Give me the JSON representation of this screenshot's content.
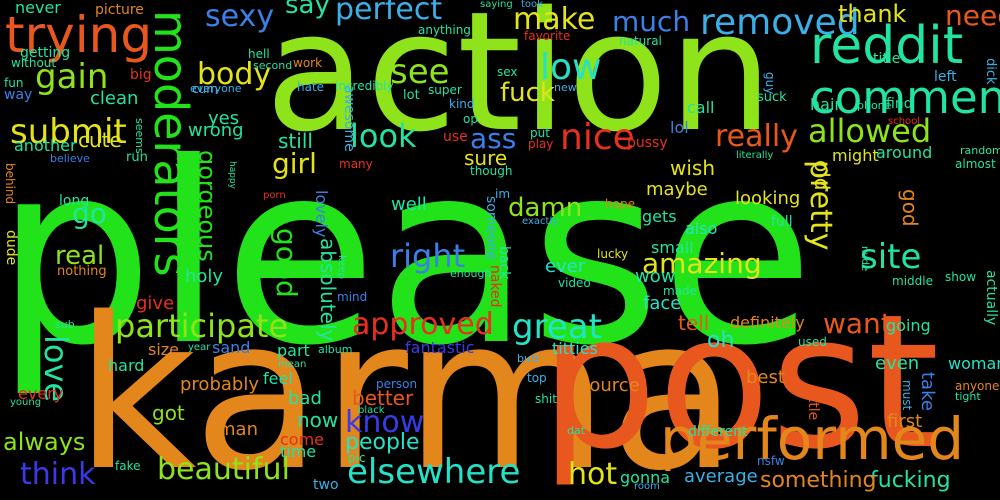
{
  "words": [
    {
      "text": "please",
      "color": "#22e31a"
    },
    {
      "text": "karma",
      "color": "#e3861c"
    },
    {
      "text": "post",
      "color": "#e8581e"
    },
    {
      "text": "action",
      "color": "#8fe31a"
    },
    {
      "text": "performed",
      "color": "#e3861c"
    },
    {
      "text": "moderators",
      "color": "#22e31a"
    },
    {
      "text": "reddit",
      "color": "#22e3a0"
    },
    {
      "text": "trying",
      "color": "#e8581e"
    },
    {
      "text": "comment",
      "color": "#22e3a0"
    },
    {
      "text": "allowed",
      "color": "#8fe31a"
    },
    {
      "text": "participate",
      "color": "#8fe31a"
    },
    {
      "text": "approved",
      "color": "#e8301e"
    },
    {
      "text": "elsewhere",
      "color": "#22e3c8"
    },
    {
      "text": "great",
      "color": "#22e3c8"
    },
    {
      "text": "beautiful",
      "color": "#8fe31a"
    },
    {
      "text": "nice",
      "color": "#e8301e"
    },
    {
      "text": "gain",
      "color": "#8fe31a"
    },
    {
      "text": "submit",
      "color": "#e3e31a"
    },
    {
      "text": "site",
      "color": "#22e3a0"
    },
    {
      "text": "removed",
      "color": "#3ab0e8"
    },
    {
      "text": "low",
      "color": "#22e3c8"
    },
    {
      "text": "see",
      "color": "#8fe31a"
    },
    {
      "text": "look",
      "color": "#22e3a0"
    },
    {
      "text": "really",
      "color": "#e8581e"
    },
    {
      "text": "gorgeous",
      "color": "#22e31a"
    },
    {
      "text": "sexy",
      "color": "#3a80e8"
    },
    {
      "text": "perfect",
      "color": "#3ab0e8"
    },
    {
      "text": "body",
      "color": "#e3e31a"
    },
    {
      "text": "make",
      "color": "#e3e31a"
    },
    {
      "text": "much",
      "color": "#3a80e8"
    },
    {
      "text": "need",
      "color": "#e8581e"
    },
    {
      "text": "thank",
      "color": "#e3e31a"
    },
    {
      "text": "say",
      "color": "#22e3a0"
    },
    {
      "text": "fuck",
      "color": "#e3e31a"
    },
    {
      "text": "ass",
      "color": "#3a80e8"
    },
    {
      "text": "pretty",
      "color": "#e3e31a"
    },
    {
      "text": "amazing",
      "color": "#e3e31a"
    },
    {
      "text": "good",
      "color": "#22e31a"
    },
    {
      "text": "girl",
      "color": "#e3e31a"
    },
    {
      "text": "damn",
      "color": "#8fe31a"
    },
    {
      "text": "right",
      "color": "#3a80e8"
    },
    {
      "text": "love",
      "color": "#22e3a0"
    },
    {
      "text": "think",
      "color": "#3a3ae8"
    },
    {
      "text": "know",
      "color": "#3a3ae8"
    },
    {
      "text": "hot",
      "color": "#e3e31a"
    },
    {
      "text": "want",
      "color": "#e8581e"
    },
    {
      "text": "real",
      "color": "#8fe31a"
    },
    {
      "text": "go",
      "color": "#22e3a0"
    },
    {
      "text": "cute",
      "color": "#e3e31a"
    },
    {
      "text": "sure",
      "color": "#e3e31a"
    },
    {
      "text": "wish",
      "color": "#e3e31a"
    },
    {
      "text": "looking",
      "color": "#e3e31a"
    },
    {
      "text": "still",
      "color": "#22e3a0"
    },
    {
      "text": "oh",
      "color": "#22e3c8"
    },
    {
      "text": "tell",
      "color": "#e8581e"
    },
    {
      "text": "people",
      "color": "#22e3c8"
    },
    {
      "text": "always",
      "color": "#8fe31a"
    },
    {
      "text": "got",
      "color": "#8fe31a"
    },
    {
      "text": "fucking",
      "color": "#22e3a0"
    },
    {
      "text": "something",
      "color": "#e3861c"
    },
    {
      "text": "woman",
      "color": "#22e3c8"
    },
    {
      "text": "yes",
      "color": "#22e3a0"
    },
    {
      "text": "wrong",
      "color": "#22e3a0"
    },
    {
      "text": "clean",
      "color": "#22e3a0"
    },
    {
      "text": "well",
      "color": "#22e3a0"
    },
    {
      "text": "absolutely",
      "color": "#22e3a0"
    },
    {
      "text": "lovely",
      "color": "#3a80e8"
    },
    {
      "text": "better",
      "color": "#e8581e"
    },
    {
      "text": "bad",
      "color": "#22e3a0"
    },
    {
      "text": "now",
      "color": "#22e3a0"
    },
    {
      "text": "man",
      "color": "#e3861c"
    },
    {
      "text": "give",
      "color": "#e8301e"
    },
    {
      "text": "holy",
      "color": "#22e3a0"
    },
    {
      "text": "probably",
      "color": "#e3861c"
    },
    {
      "text": "wow",
      "color": "#22e3a0"
    },
    {
      "text": "face",
      "color": "#22e3c8"
    },
    {
      "text": "also",
      "color": "#22e3c8"
    },
    {
      "text": "gets",
      "color": "#22e3a0"
    },
    {
      "text": "ever",
      "color": "#22e3c8"
    },
    {
      "text": "maybe",
      "color": "#e3e31a"
    },
    {
      "text": "old",
      "color": "#e3e31a"
    },
    {
      "text": "god",
      "color": "#e3861c"
    },
    {
      "text": "definitely",
      "color": "#e3861c"
    },
    {
      "text": "going",
      "color": "#22e3a0"
    },
    {
      "text": "around",
      "color": "#22e3a0"
    },
    {
      "text": "might",
      "color": "#e3e31a"
    },
    {
      "text": "even",
      "color": "#22e3a0"
    },
    {
      "text": "best",
      "color": "#e3861c"
    },
    {
      "text": "take",
      "color": "#3a80e8"
    },
    {
      "text": "first",
      "color": "#e3861c"
    },
    {
      "text": "source",
      "color": "#e3861c"
    },
    {
      "text": "average",
      "color": "#3ab0e8"
    },
    {
      "text": "gonna",
      "color": "#22e3a0"
    },
    {
      "text": "call",
      "color": "#22e3a0"
    },
    {
      "text": "lol",
      "color": "#3a80e8"
    },
    {
      "text": "fantastic",
      "color": "#3a3ae8"
    },
    {
      "text": "titties",
      "color": "#22e3c8"
    },
    {
      "text": "sand",
      "color": "#3a80e8"
    },
    {
      "text": "part",
      "color": "#22e3a0"
    },
    {
      "text": "feel",
      "color": "#22e3a0"
    },
    {
      "text": "time",
      "color": "#22e3a0"
    },
    {
      "text": "come",
      "color": "#e8301e"
    },
    {
      "text": "two",
      "color": "#3ab0e8"
    },
    {
      "text": "size",
      "color": "#e3861c"
    },
    {
      "text": "hard",
      "color": "#22e3a0"
    },
    {
      "text": "every",
      "color": "#e8301e"
    },
    {
      "text": "another",
      "color": "#22e3a0"
    },
    {
      "text": "getting",
      "color": "#22e3a0"
    },
    {
      "text": "never",
      "color": "#22e3a0"
    },
    {
      "text": "picture",
      "color": "#e3861c"
    },
    {
      "text": "cum",
      "color": "#3ab0e8"
    },
    {
      "text": "without",
      "color": "#22e3a0"
    },
    {
      "text": "big",
      "color": "#e8301e"
    },
    {
      "text": "fun",
      "color": "#22e3a0"
    },
    {
      "text": "way",
      "color": "#3a80e8"
    },
    {
      "text": "hell",
      "color": "#22e3a0"
    },
    {
      "text": "second",
      "color": "#22e3a0"
    },
    {
      "text": "work",
      "color": "#e3861c"
    },
    {
      "text": "hate",
      "color": "#3ab0e8"
    },
    {
      "text": "incredibly",
      "color": "#22e3a0"
    },
    {
      "text": "anything",
      "color": "#22e3a0"
    },
    {
      "text": "favorite",
      "color": "#e8301e"
    },
    {
      "text": "saying",
      "color": "#22e3a0"
    },
    {
      "text": "took",
      "color": "#3ab0e8"
    },
    {
      "text": "title",
      "color": "#22e3a0"
    },
    {
      "text": "natural",
      "color": "#22e3a0"
    },
    {
      "text": "hair",
      "color": "#22e3a0"
    },
    {
      "text": "phone",
      "color": "#22e3a0"
    },
    {
      "text": "find",
      "color": "#22e3a0"
    },
    {
      "text": "left",
      "color": "#3ab0e8"
    },
    {
      "text": "dick",
      "color": "#3ab0e8"
    },
    {
      "text": "everyone",
      "color": "#3ab0e8"
    },
    {
      "text": "super",
      "color": "#22e3a0"
    },
    {
      "text": "kind",
      "color": "#3ab0e8"
    },
    {
      "text": "op",
      "color": "#22e3a0"
    },
    {
      "text": "new",
      "color": "#3ab0e8"
    },
    {
      "text": "sex",
      "color": "#22e3a0"
    },
    {
      "text": "guy",
      "color": "#3ab0e8"
    },
    {
      "text": "suck",
      "color": "#22e3a0"
    },
    {
      "text": "school",
      "color": "#e8301e"
    },
    {
      "text": "literally",
      "color": "#22e3a0"
    },
    {
      "text": "almost",
      "color": "#22e3a0"
    },
    {
      "text": "random",
      "color": "#22e3a0"
    },
    {
      "text": "awesome",
      "color": "#3ab0e8"
    },
    {
      "text": "lot",
      "color": "#22e3a0"
    },
    {
      "text": "use",
      "color": "#e8301e"
    },
    {
      "text": "put",
      "color": "#22e3a0"
    },
    {
      "text": "play",
      "color": "#e8301e"
    },
    {
      "text": "pussy",
      "color": "#e8301e"
    },
    {
      "text": "run",
      "color": "#22e3a0"
    },
    {
      "text": "seems",
      "color": "#22e3a0"
    },
    {
      "text": "believe",
      "color": "#3a80e8"
    },
    {
      "text": "behind",
      "color": "#e3861c"
    },
    {
      "text": "dude",
      "color": "#e3e31a"
    },
    {
      "text": "long",
      "color": "#22e3a0"
    },
    {
      "text": "nothing",
      "color": "#e3861c"
    },
    {
      "text": "happy",
      "color": "#22e3a0"
    },
    {
      "text": "porn",
      "color": "#e8301e"
    },
    {
      "text": "many",
      "color": "#e8301e"
    },
    {
      "text": "im",
      "color": "#3ab0e8"
    },
    {
      "text": "someone",
      "color": "#3ab0e8"
    },
    {
      "text": "though",
      "color": "#22e3a0"
    },
    {
      "text": "exactly",
      "color": "#3ab0e8"
    },
    {
      "text": "hope",
      "color": "#e3861c"
    },
    {
      "text": "full",
      "color": "#22e3a0"
    },
    {
      "text": "small",
      "color": "#22e3a0"
    },
    {
      "text": "lucky",
      "color": "#e3e31a"
    },
    {
      "text": "video",
      "color": "#22e3a0"
    },
    {
      "text": "enough",
      "color": "#22e3a0"
    },
    {
      "text": "keep",
      "color": "#22e3a0"
    },
    {
      "text": "mind",
      "color": "#3a80e8"
    },
    {
      "text": "naked",
      "color": "#e8301e"
    },
    {
      "text": "back",
      "color": "#22e3a0"
    },
    {
      "text": "made",
      "color": "#22e3a0"
    },
    {
      "text": "nude",
      "color": "#22e3a0"
    },
    {
      "text": "middle",
      "color": "#22e3a0"
    },
    {
      "text": "show",
      "color": "#22e3a0"
    },
    {
      "text": "actually",
      "color": "#22e3a0"
    },
    {
      "text": "used",
      "color": "#22e3a0"
    },
    {
      "text": "little",
      "color": "#e8581e"
    },
    {
      "text": "must",
      "color": "#3ab0e8"
    },
    {
      "text": "anyone",
      "color": "#e3861c"
    },
    {
      "text": "tight",
      "color": "#22e3a0"
    },
    {
      "text": "different",
      "color": "#22e3a0"
    },
    {
      "text": "nsfw",
      "color": "#3a80e8"
    },
    {
      "text": "dat",
      "color": "#22e3a0"
    },
    {
      "text": "shit",
      "color": "#22e3a0"
    },
    {
      "text": "top",
      "color": "#3ab0e8"
    },
    {
      "text": "butt",
      "color": "#3ab0e8"
    },
    {
      "text": "person",
      "color": "#3a80e8"
    },
    {
      "text": "black",
      "color": "#22e3a0"
    },
    {
      "text": "pic",
      "color": "#22e3a0"
    },
    {
      "text": "album",
      "color": "#22e3a0"
    },
    {
      "text": "mean",
      "color": "#22e3a0"
    },
    {
      "text": "year",
      "color": "#22e3a0"
    },
    {
      "text": "sub",
      "color": "#22e3a0"
    },
    {
      "text": "young",
      "color": "#22e3a0"
    },
    {
      "text": "fake",
      "color": "#22e3a0"
    },
    {
      "text": "room",
      "color": "#3ab0e8"
    }
  ]
}
